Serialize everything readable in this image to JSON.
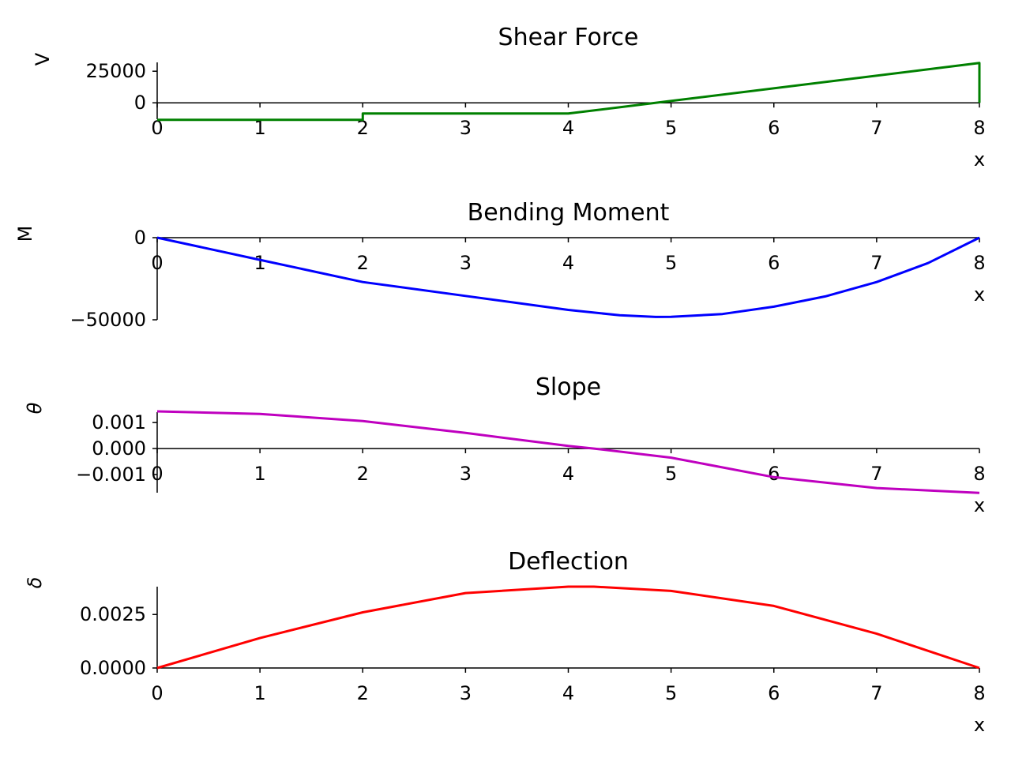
{
  "chart_data": [
    {
      "type": "line",
      "title": "Shear Force",
      "xlabel": "x",
      "ylabel": "V",
      "xlim": [
        0,
        8
      ],
      "ylim": [
        -13000,
        32000
      ],
      "xticks": [
        0,
        1,
        2,
        3,
        4,
        5,
        6,
        7,
        8
      ],
      "yticks": [
        0,
        25000
      ],
      "ytick_labels": [
        "0",
        "25000"
      ],
      "color": "#008000",
      "series": [
        {
          "x": [
            0,
            2,
            2,
            4,
            8,
            8
          ],
          "y": [
            -13500,
            -13500,
            -8500,
            -8500,
            31500,
            0
          ]
        }
      ]
    },
    {
      "type": "line",
      "title": "Bending Moment",
      "xlabel": "x",
      "ylabel": "M",
      "xlim": [
        0,
        8
      ],
      "ylim": [
        -50000,
        0
      ],
      "xticks": [
        0,
        1,
        2,
        3,
        4,
        5,
        6,
        7,
        8
      ],
      "yticks": [
        0,
        -50000
      ],
      "ytick_labels": [
        "0",
        "−50000"
      ],
      "color": "#0000ff",
      "series": [
        {
          "x": [
            0,
            1,
            2,
            3,
            4,
            4.5,
            4.85,
            5,
            5.5,
            6,
            6.5,
            7,
            7.5,
            8
          ],
          "y": [
            0,
            -13500,
            -27000,
            -35500,
            -44000,
            -47250,
            -48250,
            -48200,
            -46500,
            -42000,
            -35750,
            -27000,
            -15500,
            0
          ]
        }
      ]
    },
    {
      "type": "line",
      "title": "Slope",
      "xlabel": "x",
      "ylabel": "θ",
      "xlim": [
        0,
        8
      ],
      "ylim": [
        -0.0017,
        0.0014
      ],
      "xticks": [
        0,
        1,
        2,
        3,
        4,
        5,
        6,
        7,
        8
      ],
      "yticks": [
        0.001,
        0,
        -0.001
      ],
      "ytick_labels": [
        "0.001",
        "0.000",
        "−0.001"
      ],
      "color": "#bf00bf",
      "series": [
        {
          "x": [
            0,
            1,
            2,
            3,
            4,
            4.25,
            5,
            6,
            7,
            8
          ],
          "y": [
            0.00143,
            0.00133,
            0.00106,
            0.0006,
            0.0001,
            0,
            -0.00035,
            -0.0011,
            -0.00152,
            -0.00171
          ]
        }
      ]
    },
    {
      "type": "line",
      "title": "Deflection",
      "xlabel": "x",
      "ylabel": "δ",
      "xlim": [
        0,
        8
      ],
      "ylim": [
        0,
        0.0038
      ],
      "xticks": [
        0,
        1,
        2,
        3,
        4,
        5,
        6,
        7,
        8
      ],
      "yticks": [
        0,
        0.0025
      ],
      "ytick_labels": [
        "0.0000",
        "0.0025"
      ],
      "color": "#ff0000",
      "series": [
        {
          "x": [
            0,
            1,
            2,
            3,
            4,
            4.25,
            5,
            6,
            7,
            8
          ],
          "y": [
            0,
            0.0014,
            0.0026,
            0.0035,
            0.0038,
            0.0038,
            0.0036,
            0.0029,
            0.0016,
            0
          ]
        }
      ]
    }
  ]
}
